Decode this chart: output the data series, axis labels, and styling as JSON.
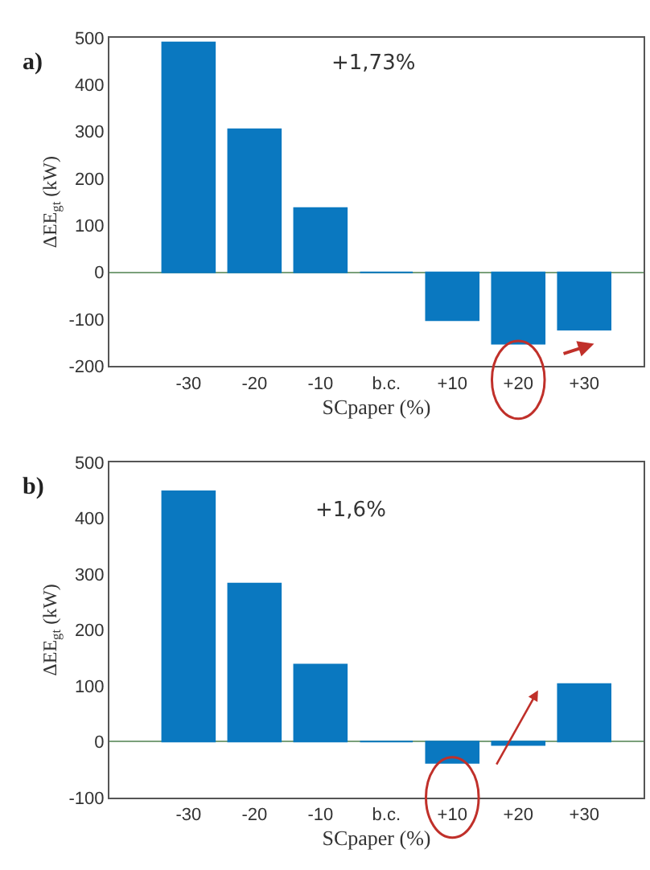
{
  "chart_data": [
    {
      "type": "bar",
      "title": "a)",
      "xlabel": "SCpaper (%)",
      "ylabel": "ΔEE$_{gt}$ (kW)",
      "categories": [
        "-30",
        "-20",
        "-10",
        "b.c.",
        "+10",
        "+20",
        "+30"
      ],
      "values": [
        490,
        305,
        137,
        0,
        -102,
        -152,
        -122
      ],
      "color": "#0a78c0",
      "ylim": [
        -200,
        500
      ],
      "yticks": [
        -200,
        -100,
        0,
        100,
        200,
        300,
        400,
        500
      ],
      "annotations": [
        "+1,73%"
      ]
    },
    {
      "type": "bar",
      "title": "b)",
      "xlabel": "SCpaper (%)",
      "ylabel": "ΔEE$_{gt}$ (kW)",
      "categories": [
        "-30",
        "-20",
        "-10",
        "b.c.",
        "+10",
        "+20",
        "+30"
      ],
      "values": [
        448,
        283,
        138,
        0,
        -38,
        -6,
        103
      ],
      "color": "#0a78c0",
      "ylim": [
        -100,
        500
      ],
      "yticks": [
        -100,
        0,
        100,
        200,
        300,
        400,
        500
      ],
      "annotations": [
        "+1,6%"
      ]
    }
  ]
}
